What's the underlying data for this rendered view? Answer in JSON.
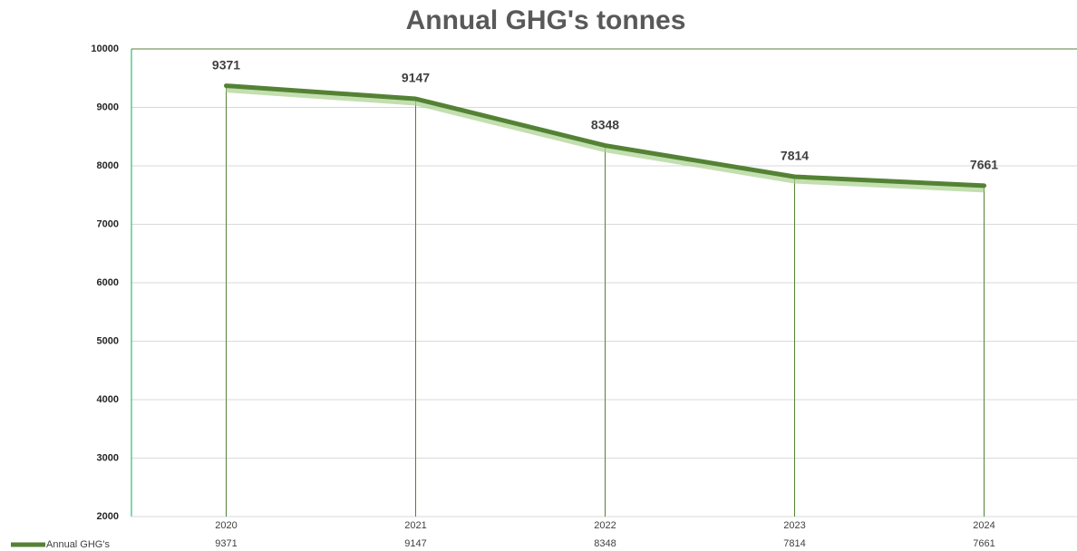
{
  "chart_data": {
    "type": "line",
    "title": "Annual GHG's tonnes",
    "categories": [
      "2020",
      "2021",
      "2022",
      "2023",
      "2024"
    ],
    "series": [
      {
        "name": "Annual GHG's",
        "color": "#548235",
        "values": [
          9371,
          9147,
          8348,
          7814,
          7661
        ]
      }
    ],
    "ylim": [
      2000,
      10000
    ],
    "yticks": [
      2000,
      3000,
      4000,
      5000,
      6000,
      7000,
      8000,
      9000,
      10000
    ],
    "grid": true,
    "legend": "bottom-left",
    "data_labels": true,
    "data_table": true
  }
}
